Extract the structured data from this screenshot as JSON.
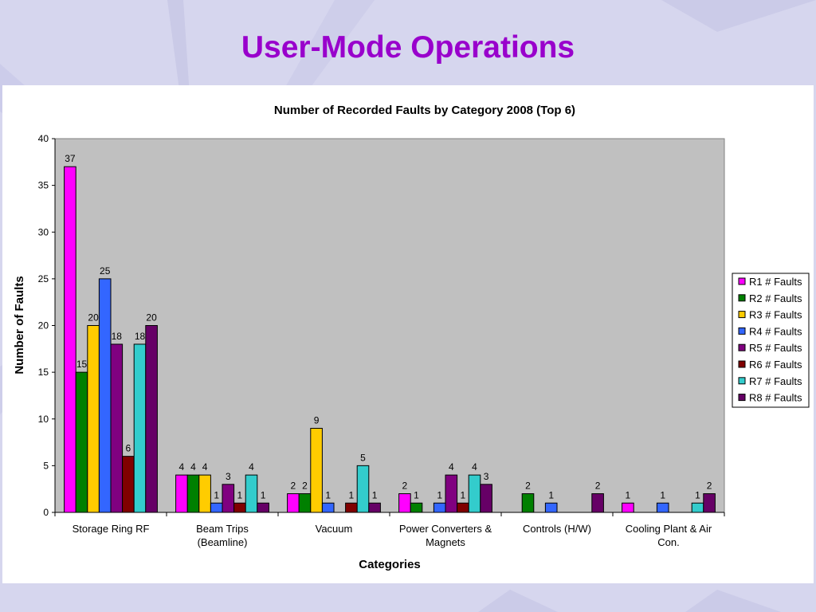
{
  "slide": {
    "title": "User-Mode Operations"
  },
  "chart_data": {
    "type": "bar",
    "title": "Number of Recorded Faults by Category 2008 (Top 6)",
    "xlabel": "Categories",
    "ylabel": "Number of Faults",
    "ylim": [
      0,
      40
    ],
    "yticks": [
      0,
      5,
      10,
      15,
      20,
      25,
      30,
      35,
      40
    ],
    "grid": false,
    "legend_position": "right",
    "categories": [
      [
        "Storage Ring RF"
      ],
      [
        "Beam Trips",
        "(Beamline)"
      ],
      [
        "Vacuum"
      ],
      [
        "Power Converters &",
        "Magnets"
      ],
      [
        "Controls (H/W)"
      ],
      [
        "Cooling Plant & Air",
        "Con."
      ]
    ],
    "series": [
      {
        "name": "R1 # Faults",
        "color": "#ff00ff",
        "values": [
          37,
          4,
          2,
          2,
          null,
          1
        ]
      },
      {
        "name": "R2 # Faults",
        "color": "#008000",
        "values": [
          15,
          4,
          2,
          1,
          2,
          null
        ]
      },
      {
        "name": "R3 # Faults",
        "color": "#ffcc00",
        "values": [
          20,
          4,
          9,
          null,
          null,
          null
        ]
      },
      {
        "name": "R4 # Faults",
        "color": "#3366ff",
        "values": [
          25,
          1,
          1,
          1,
          1,
          1
        ]
      },
      {
        "name": "R5 # Faults",
        "color": "#800080",
        "values": [
          18,
          3,
          null,
          4,
          null,
          null
        ]
      },
      {
        "name": "R6 # Faults",
        "color": "#800000",
        "values": [
          6,
          1,
          1,
          1,
          null,
          null
        ]
      },
      {
        "name": "R7 # Faults",
        "color": "#33cccc",
        "values": [
          18,
          4,
          5,
          4,
          null,
          1
        ]
      },
      {
        "name": "R8 # Faults",
        "color": "#660066",
        "values": [
          20,
          1,
          1,
          3,
          2,
          2
        ]
      }
    ],
    "plot_background": "#c0c0c0"
  }
}
